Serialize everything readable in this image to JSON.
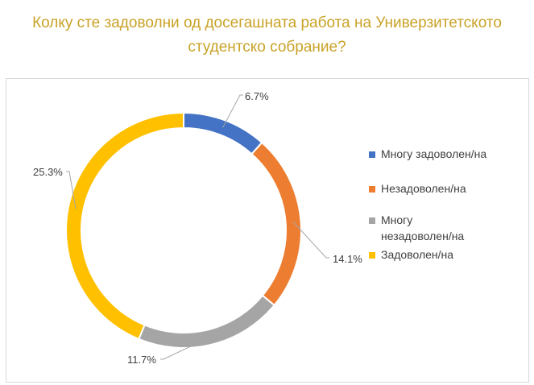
{
  "title_line1": "Колку сте задоволни од досегашната работа на Универзитетското",
  "title_line2": "студентско собрание?",
  "colors": {
    "title": "#c9a227"
  },
  "chart_data": {
    "type": "pie",
    "variant": "donut",
    "title": "Колку сте задоволни од досегашната работа на Универзитетското студентско собрание?",
    "slices": [
      {
        "label": "Многу задоволен/на",
        "value": 6.7,
        "display": "6.7%",
        "color": "#4472c4"
      },
      {
        "label": "Незадоволен/на",
        "value": 14.1,
        "display": "14.1%",
        "color": "#ed7d31"
      },
      {
        "label": "Многу незадоволен/на",
        "value": 11.7,
        "display": "11.7%",
        "color": "#a5a5a5"
      },
      {
        "label": "Задоволен/на",
        "value": 25.3,
        "display": "25.3%",
        "color": "#ffc000"
      }
    ],
    "legend_position": "right"
  }
}
